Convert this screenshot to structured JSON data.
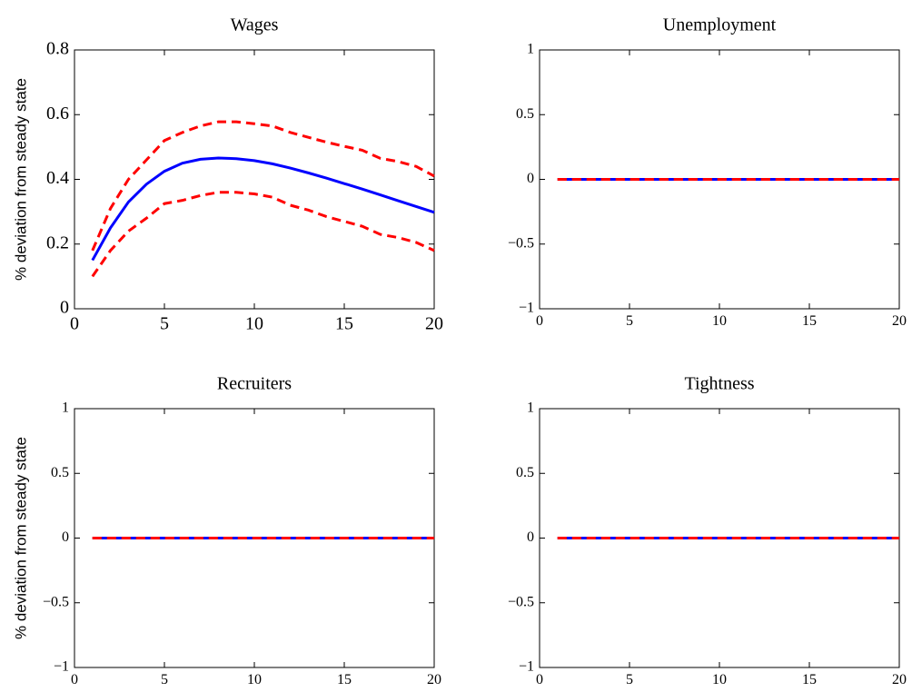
{
  "chart_data": [
    {
      "type": "line",
      "title": "Wages",
      "ylabel": "% deviation from steady state",
      "x": [
        1,
        2,
        3,
        4,
        5,
        6,
        7,
        8,
        9,
        10,
        11,
        12,
        13,
        14,
        15,
        16,
        17,
        18,
        19,
        20
      ],
      "series": [
        {
          "color": "#0000ff",
          "linestyle": "solid",
          "values": [
            0.15,
            0.25,
            0.33,
            0.385,
            0.425,
            0.45,
            0.462,
            0.466,
            0.464,
            0.458,
            0.448,
            0.435,
            0.42,
            0.404,
            0.387,
            0.37,
            0.352,
            0.334,
            0.316,
            0.298
          ]
        },
        {
          "color": "#ff0000",
          "linestyle": "dashed",
          "values": [
            0.18,
            0.31,
            0.4,
            0.46,
            0.52,
            0.545,
            0.565,
            0.578,
            0.578,
            0.572,
            0.565,
            0.545,
            0.53,
            0.515,
            0.502,
            0.49,
            0.465,
            0.455,
            0.44,
            0.41
          ]
        },
        {
          "color": "#ff0000",
          "linestyle": "dashed",
          "values": [
            0.1,
            0.18,
            0.24,
            0.28,
            0.325,
            0.335,
            0.35,
            0.36,
            0.36,
            0.355,
            0.345,
            0.32,
            0.305,
            0.285,
            0.27,
            0.255,
            0.23,
            0.22,
            0.205,
            0.18
          ]
        }
      ],
      "xlim": [
        0,
        20
      ],
      "xticks": [
        0,
        5,
        10,
        15,
        20
      ],
      "ylim": [
        0,
        0.8
      ],
      "yticks": [
        0,
        0.2,
        0.4,
        0.6,
        0.8
      ]
    },
    {
      "type": "line",
      "title": "Unemployment",
      "x": [
        1,
        2,
        3,
        4,
        5,
        6,
        7,
        8,
        9,
        10,
        11,
        12,
        13,
        14,
        15,
        16,
        17,
        18,
        19,
        20
      ],
      "series": [
        {
          "color": "#0000ff",
          "linestyle": "solid",
          "values": [
            0,
            0,
            0,
            0,
            0,
            0,
            0,
            0,
            0,
            0,
            0,
            0,
            0,
            0,
            0,
            0,
            0,
            0,
            0,
            0
          ]
        },
        {
          "color": "#ff0000",
          "linestyle": "dashed",
          "values": [
            0,
            0,
            0,
            0,
            0,
            0,
            0,
            0,
            0,
            0,
            0,
            0,
            0,
            0,
            0,
            0,
            0,
            0,
            0,
            0
          ]
        },
        {
          "color": "#ff0000",
          "linestyle": "dashed",
          "values": [
            0,
            0,
            0,
            0,
            0,
            0,
            0,
            0,
            0,
            0,
            0,
            0,
            0,
            0,
            0,
            0,
            0,
            0,
            0,
            0
          ]
        }
      ],
      "xlim": [
        0,
        20
      ],
      "xticks": [
        0,
        5,
        10,
        15,
        20
      ],
      "ylim": [
        -1,
        1
      ],
      "yticks": [
        {
          "value": -1,
          "label": "−1"
        },
        {
          "value": -0.5,
          "label": "−0.5"
        },
        0,
        0.5,
        1
      ]
    },
    {
      "type": "line",
      "title": "Recruiters",
      "ylabel": "% deviation from steady state",
      "x": [
        1,
        2,
        3,
        4,
        5,
        6,
        7,
        8,
        9,
        10,
        11,
        12,
        13,
        14,
        15,
        16,
        17,
        18,
        19,
        20
      ],
      "series": [
        {
          "color": "#0000ff",
          "linestyle": "solid",
          "values": [
            0,
            0,
            0,
            0,
            0,
            0,
            0,
            0,
            0,
            0,
            0,
            0,
            0,
            0,
            0,
            0,
            0,
            0,
            0,
            0
          ]
        },
        {
          "color": "#ff0000",
          "linestyle": "dashed",
          "values": [
            0,
            0,
            0,
            0,
            0,
            0,
            0,
            0,
            0,
            0,
            0,
            0,
            0,
            0,
            0,
            0,
            0,
            0,
            0,
            0
          ]
        },
        {
          "color": "#ff0000",
          "linestyle": "dashed",
          "values": [
            0,
            0,
            0,
            0,
            0,
            0,
            0,
            0,
            0,
            0,
            0,
            0,
            0,
            0,
            0,
            0,
            0,
            0,
            0,
            0
          ]
        }
      ],
      "xlim": [
        0,
        20
      ],
      "xticks": [
        0,
        5,
        10,
        15,
        20
      ],
      "ylim": [
        -1,
        1
      ],
      "yticks": [
        {
          "value": -1,
          "label": "−1"
        },
        {
          "value": -0.5,
          "label": "−0.5"
        },
        0,
        0.5,
        1
      ]
    },
    {
      "type": "line",
      "title": "Tightness",
      "x": [
        1,
        2,
        3,
        4,
        5,
        6,
        7,
        8,
        9,
        10,
        11,
        12,
        13,
        14,
        15,
        16,
        17,
        18,
        19,
        20
      ],
      "series": [
        {
          "color": "#0000ff",
          "linestyle": "solid",
          "values": [
            0,
            0,
            0,
            0,
            0,
            0,
            0,
            0,
            0,
            0,
            0,
            0,
            0,
            0,
            0,
            0,
            0,
            0,
            0,
            0
          ]
        },
        {
          "color": "#ff0000",
          "linestyle": "dashed",
          "values": [
            0,
            0,
            0,
            0,
            0,
            0,
            0,
            0,
            0,
            0,
            0,
            0,
            0,
            0,
            0,
            0,
            0,
            0,
            0,
            0
          ]
        },
        {
          "color": "#ff0000",
          "linestyle": "dashed",
          "values": [
            0,
            0,
            0,
            0,
            0,
            0,
            0,
            0,
            0,
            0,
            0,
            0,
            0,
            0,
            0,
            0,
            0,
            0,
            0,
            0
          ]
        }
      ],
      "xlim": [
        0,
        20
      ],
      "xticks": [
        0,
        5,
        10,
        15,
        20
      ],
      "ylim": [
        -1,
        1
      ],
      "yticks": [
        {
          "value": -1,
          "label": "−1"
        },
        {
          "value": -0.5,
          "label": "−0.5"
        },
        0,
        0.5,
        1
      ]
    }
  ]
}
